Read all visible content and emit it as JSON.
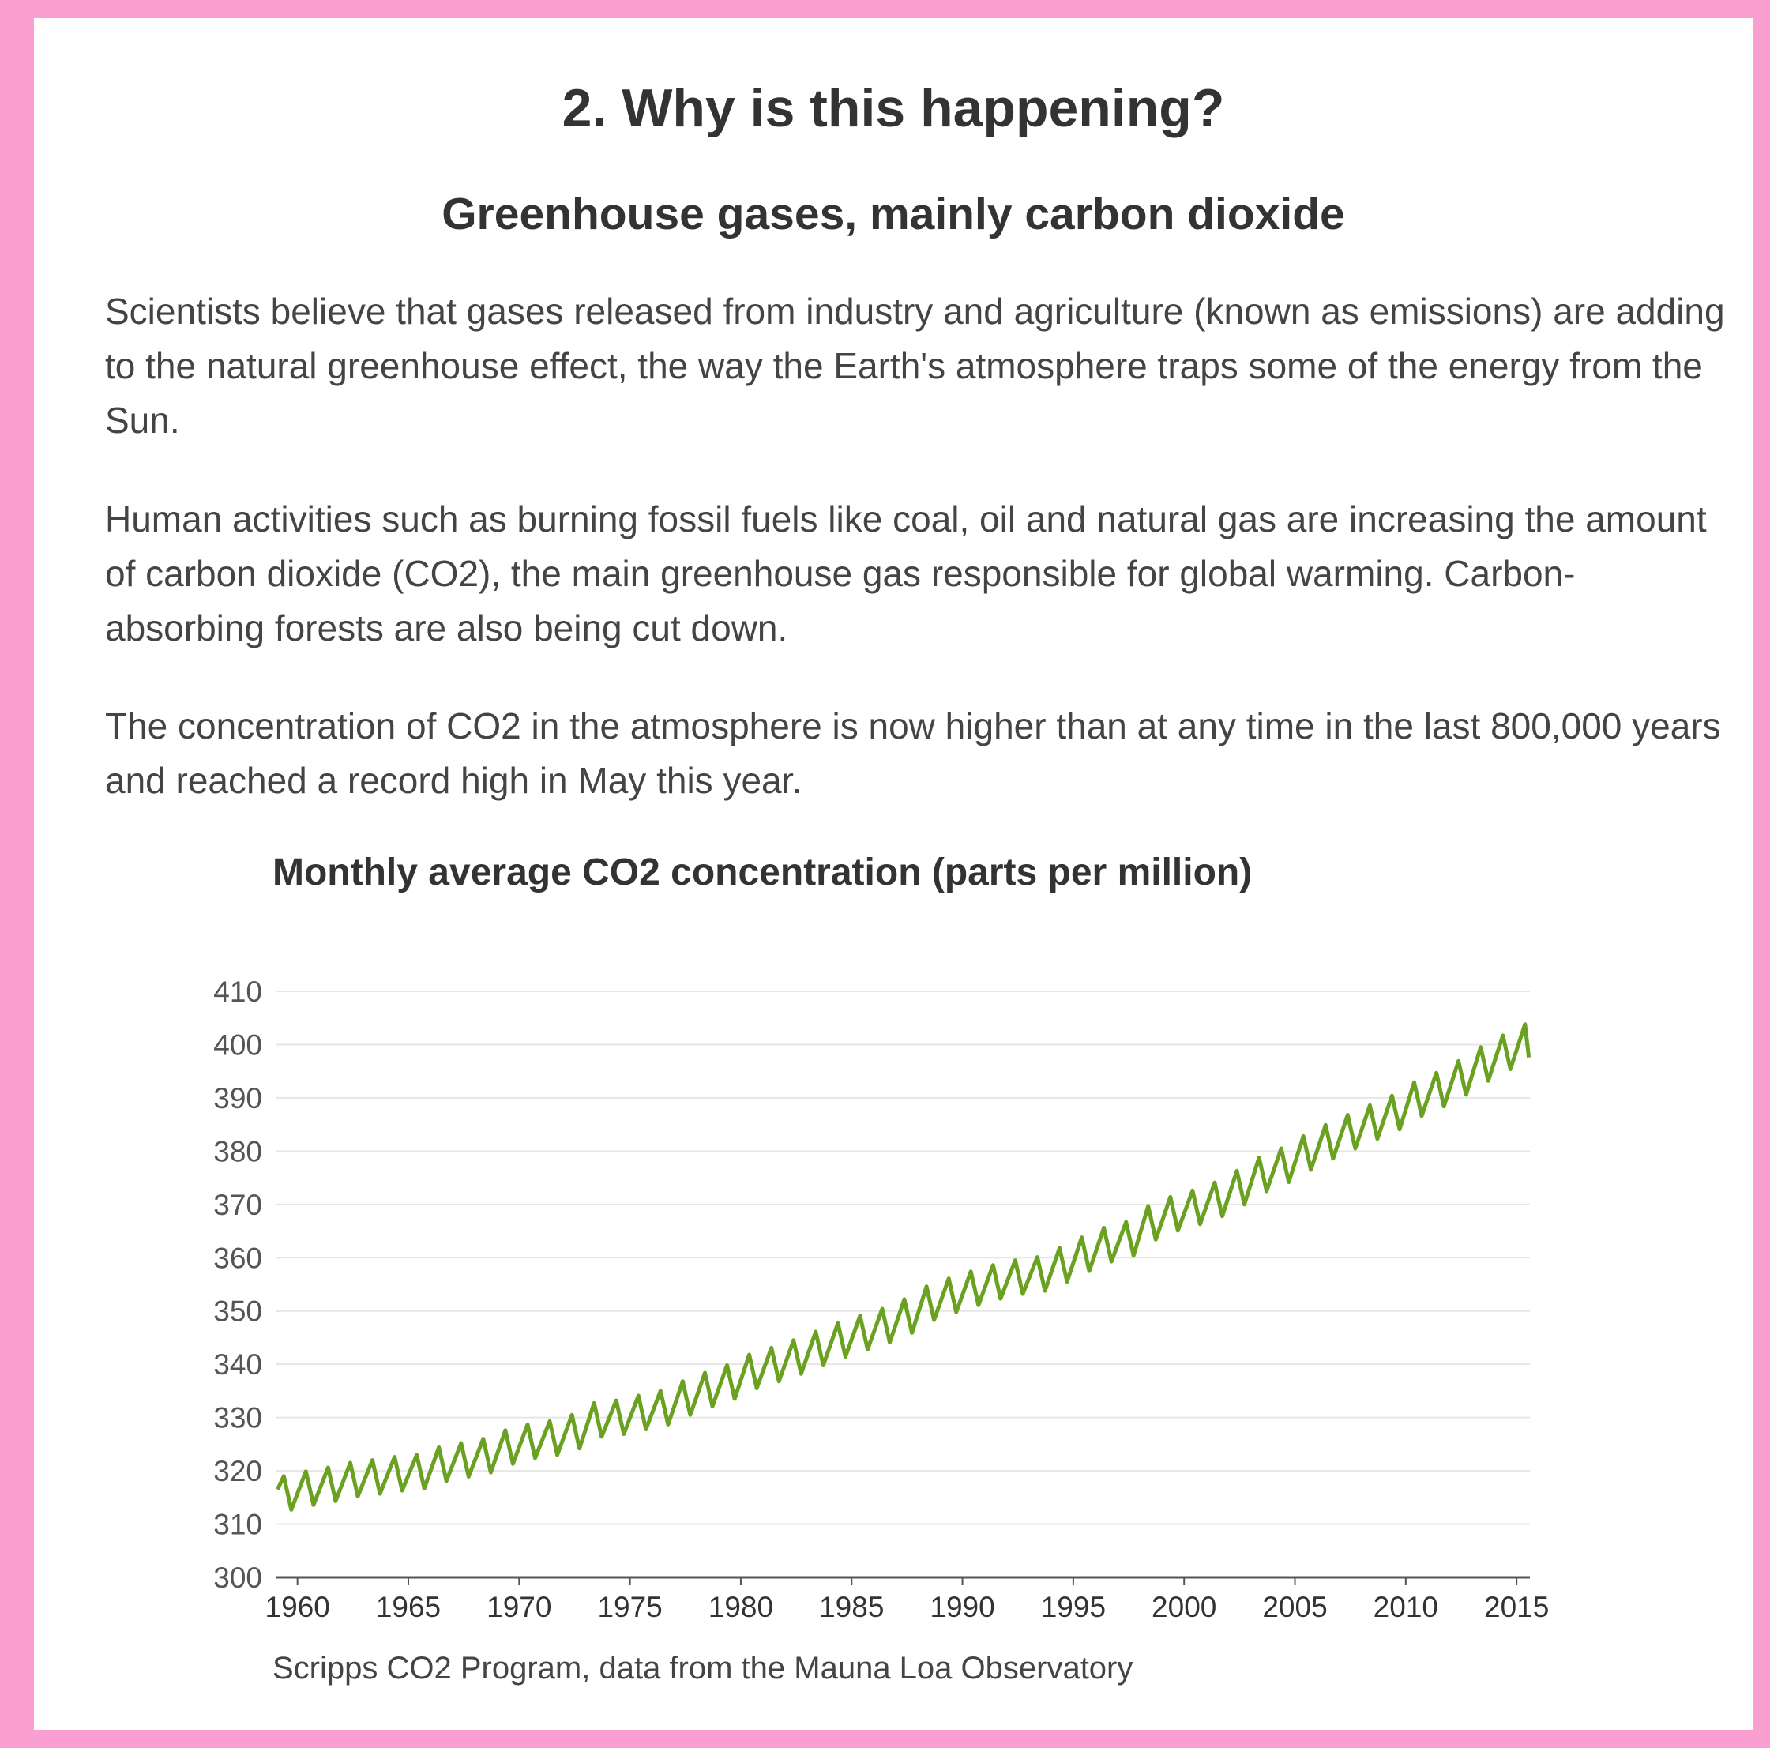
{
  "header": {
    "title": "2. Why is this happening?",
    "subtitle": "Greenhouse gases, mainly carbon dioxide"
  },
  "paragraphs": [
    "Scientists believe that gases released from industry and agriculture (known as emissions) are adding to the natural greenhouse effect, the way the Earth's atmosphere traps some of the energy from the Sun.",
    "Human activities such as burning fossil fuels like coal, oil and natural gas are increasing the amount of carbon dioxide (CO2), the main greenhouse gas responsible for global warming. Carbon-absorbing forests are also being cut down.",
    "The concentration of CO2 in the atmosphere is now higher than at any time in the last 800,000 years and reached a record high in May this year."
  ],
  "chart_data": {
    "type": "line",
    "title": "Monthly average CO2 concentration (parts per million)",
    "source": "Scripps CO2 Program, data from the Mauna Loa Observatory",
    "color": "#6aa121",
    "grid": true,
    "x": [
      1959.1,
      1959.38,
      1959.72,
      1960.38,
      1960.72,
      1961.38,
      1961.72,
      1962.38,
      1962.72,
      1963.38,
      1963.72,
      1964.38,
      1964.72,
      1965.38,
      1965.72,
      1966.38,
      1966.72,
      1967.38,
      1967.72,
      1968.38,
      1968.72,
      1969.38,
      1969.72,
      1970.38,
      1970.72,
      1971.38,
      1971.72,
      1972.38,
      1972.72,
      1973.38,
      1973.72,
      1974.38,
      1974.72,
      1975.38,
      1975.72,
      1976.38,
      1976.72,
      1977.38,
      1977.72,
      1978.38,
      1978.72,
      1979.38,
      1979.72,
      1980.38,
      1980.72,
      1981.38,
      1981.72,
      1982.38,
      1982.72,
      1983.38,
      1983.72,
      1984.38,
      1984.72,
      1985.38,
      1985.72,
      1986.38,
      1986.72,
      1987.38,
      1987.72,
      1988.38,
      1988.72,
      1989.38,
      1989.72,
      1990.38,
      1990.72,
      1991.38,
      1991.72,
      1992.38,
      1992.72,
      1993.38,
      1993.72,
      1994.38,
      1994.72,
      1995.38,
      1995.72,
      1996.38,
      1996.72,
      1997.38,
      1997.72,
      1998.38,
      1998.72,
      1999.38,
      1999.72,
      2000.38,
      2000.72,
      2001.38,
      2001.72,
      2002.38,
      2002.72,
      2003.38,
      2003.72,
      2004.38,
      2004.72,
      2005.38,
      2005.72,
      2006.38,
      2006.72,
      2007.38,
      2007.72,
      2008.38,
      2008.72,
      2009.38,
      2009.72,
      2010.38,
      2010.72,
      2011.38,
      2011.72,
      2012.38,
      2012.72,
      2013.38,
      2013.72,
      2014.38,
      2014.72,
      2015.38,
      2015.55
    ],
    "values": [
      316.5,
      319.0,
      312.7,
      319.9,
      313.6,
      320.6,
      314.3,
      321.5,
      315.2,
      322.0,
      315.7,
      322.6,
      316.3,
      323.0,
      316.7,
      324.4,
      318.1,
      325.2,
      318.9,
      326.0,
      319.7,
      327.6,
      321.3,
      328.7,
      322.4,
      329.3,
      323.0,
      330.5,
      324.2,
      332.7,
      326.4,
      333.2,
      326.9,
      334.1,
      327.8,
      335.0,
      328.7,
      336.8,
      330.5,
      338.4,
      332.1,
      339.8,
      333.5,
      341.8,
      335.5,
      343.1,
      336.8,
      344.5,
      338.2,
      346.1,
      339.8,
      347.7,
      341.4,
      349.1,
      342.8,
      350.4,
      344.1,
      352.2,
      345.9,
      354.6,
      348.3,
      356.1,
      349.8,
      357.4,
      351.1,
      358.6,
      352.3,
      359.5,
      353.2,
      360.1,
      353.8,
      361.8,
      355.5,
      363.8,
      357.5,
      365.6,
      359.3,
      366.7,
      360.4,
      369.7,
      363.4,
      371.4,
      365.1,
      372.6,
      366.3,
      374.1,
      367.8,
      376.3,
      370.0,
      378.8,
      372.5,
      380.5,
      374.2,
      382.8,
      376.5,
      384.9,
      378.6,
      386.8,
      380.5,
      388.6,
      382.3,
      390.4,
      384.1,
      392.9,
      386.6,
      394.7,
      388.4,
      396.9,
      390.6,
      399.5,
      393.2,
      401.7,
      395.4,
      403.8,
      397.6
    ],
    "xlim": [
      1959.05,
      2015.6
    ],
    "xticks": [
      1960,
      1965,
      1970,
      1975,
      1980,
      1985,
      1990,
      1995,
      2000,
      2005,
      2010,
      2015
    ],
    "ylim": [
      300,
      410
    ],
    "yticks": [
      300,
      310,
      320,
      330,
      340,
      350,
      360,
      370,
      380,
      390,
      400,
      410
    ]
  }
}
